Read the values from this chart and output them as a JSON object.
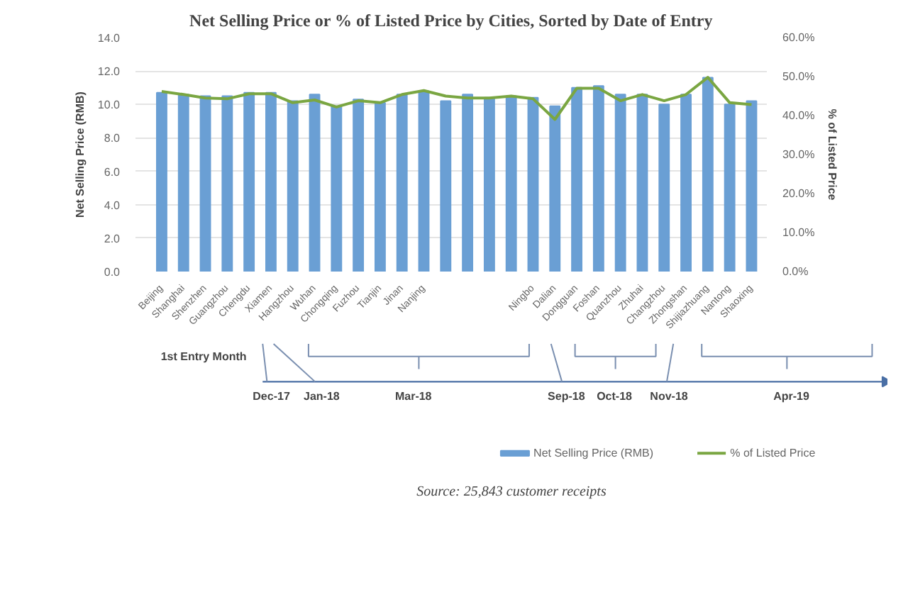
{
  "chart_data": {
    "type": "bar",
    "title": "Net Selling Price or % of Listed Price by Cities, Sorted by Date of Entry",
    "ylabel": "Net Selling Price (RMB)",
    "y2label": "% of Listed Price",
    "categories": [
      "Beijing",
      "Shanghai",
      "Shenzhen",
      "Guangzhou",
      "Chengdu",
      "Xiamen",
      "Hangzhou",
      "Wuhan",
      "Chongqing",
      "Fuzhou",
      "Tianjin",
      "Jinan",
      "Nanjing",
      null,
      null,
      null,
      null,
      "Ningbo",
      "Dalian",
      "Dongguan",
      "Foshan",
      "Quanzhou",
      "Zhuhai",
      "Changzhou",
      "Zhongshan",
      "Shijiazhuang",
      "Nantong",
      "Shaoxing"
    ],
    "series": [
      {
        "name": "Net Selling Price (RMB)",
        "color": "#6a9fd4",
        "values": [
          10.7,
          10.6,
          10.5,
          10.5,
          10.7,
          10.7,
          10.2,
          10.6,
          9.9,
          10.3,
          10.1,
          10.6,
          10.8,
          10.2,
          10.6,
          10.4,
          10.5,
          10.4,
          9.9,
          11.0,
          11.1,
          10.6,
          10.6,
          10.0,
          10.6,
          11.6,
          10.0,
          10.2
        ]
      },
      {
        "name": "% of Listed Price",
        "type": "line",
        "axis": "y2",
        "color": "#7aa642",
        "values": [
          46.2,
          45.4,
          44.5,
          44.3,
          45.6,
          45.6,
          43.3,
          44.0,
          42.2,
          43.8,
          43.3,
          45.4,
          46.4,
          45.0,
          44.5,
          44.5,
          45.0,
          44.3,
          39.0,
          47.0,
          47.0,
          43.8,
          45.4,
          43.8,
          45.4,
          49.8,
          43.3,
          42.8
        ]
      }
    ],
    "ylim": [
      0,
      14
    ],
    "yticks": [
      {
        "value": 0,
        "label": "0.0"
      },
      {
        "value": 2,
        "label": "2.0"
      },
      {
        "value": 4,
        "label": "4.0"
      },
      {
        "value": 6,
        "label": "6.0"
      },
      {
        "value": 8,
        "label": "8.0"
      },
      {
        "value": 10,
        "label": "10.0"
      },
      {
        "value": 12,
        "label": "12.0"
      },
      {
        "value": 14,
        "label": "14.0"
      }
    ],
    "y2lim": [
      0,
      60
    ],
    "y2ticks": [
      {
        "value": 0,
        "label": "0.0%"
      },
      {
        "value": 10,
        "label": "10.0%"
      },
      {
        "value": 20,
        "label": "20.0%"
      },
      {
        "value": 30,
        "label": "30.0%"
      },
      {
        "value": 40,
        "label": "40.0%"
      },
      {
        "value": 50,
        "label": "50.0%"
      },
      {
        "value": 60,
        "label": "60.0%"
      }
    ],
    "grid": "y",
    "legend": "bottom",
    "annotations": [
      "1st Entry Month",
      "Dec-17",
      "Jan-18",
      "Mar-18",
      "Sep-18",
      "Oct-18",
      "Nov-18",
      "Apr-19",
      "Source: 25,843 customer receipts"
    ]
  }
}
